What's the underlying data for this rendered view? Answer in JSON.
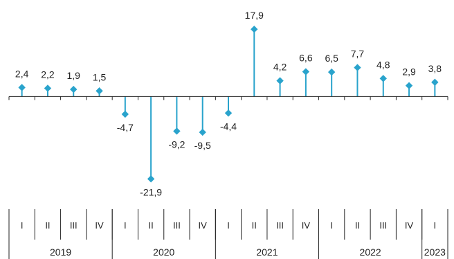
{
  "chart_data": {
    "type": "lollipop",
    "title": "",
    "xlabel": "",
    "ylabel": "",
    "colors": {
      "stem": "#29a3cc",
      "marker": "#29a3cc",
      "axis": "#222222"
    },
    "quarter_labels": [
      "I",
      "II",
      "III",
      "IV",
      "I",
      "II",
      "III",
      "IV",
      "I",
      "II",
      "III",
      "IV",
      "I",
      "II",
      "III",
      "IV",
      "I"
    ],
    "years": [
      {
        "label": "2019",
        "quarters": 4
      },
      {
        "label": "2020",
        "quarters": 4
      },
      {
        "label": "2021",
        "quarters": 4
      },
      {
        "label": "2022",
        "quarters": 4
      },
      {
        "label": "2023",
        "quarters": 1
      }
    ],
    "values": [
      2.4,
      2.2,
      1.9,
      1.5,
      -4.7,
      -21.9,
      -9.2,
      -9.5,
      -4.4,
      17.9,
      4.2,
      6.6,
      6.5,
      7.7,
      4.8,
      2.9,
      3.8
    ],
    "value_labels": [
      "2,4",
      "2,2",
      "1,9",
      "1,5",
      "-4,7",
      "-21,9",
      "-9,2",
      "-9,5",
      "-4,4",
      "17,9",
      "4,2",
      "6,6",
      "6,5",
      "7,7",
      "4,8",
      "2,9",
      "3,8"
    ],
    "ylim": [
      -27,
      21
    ],
    "grid": false,
    "legend": "none"
  }
}
